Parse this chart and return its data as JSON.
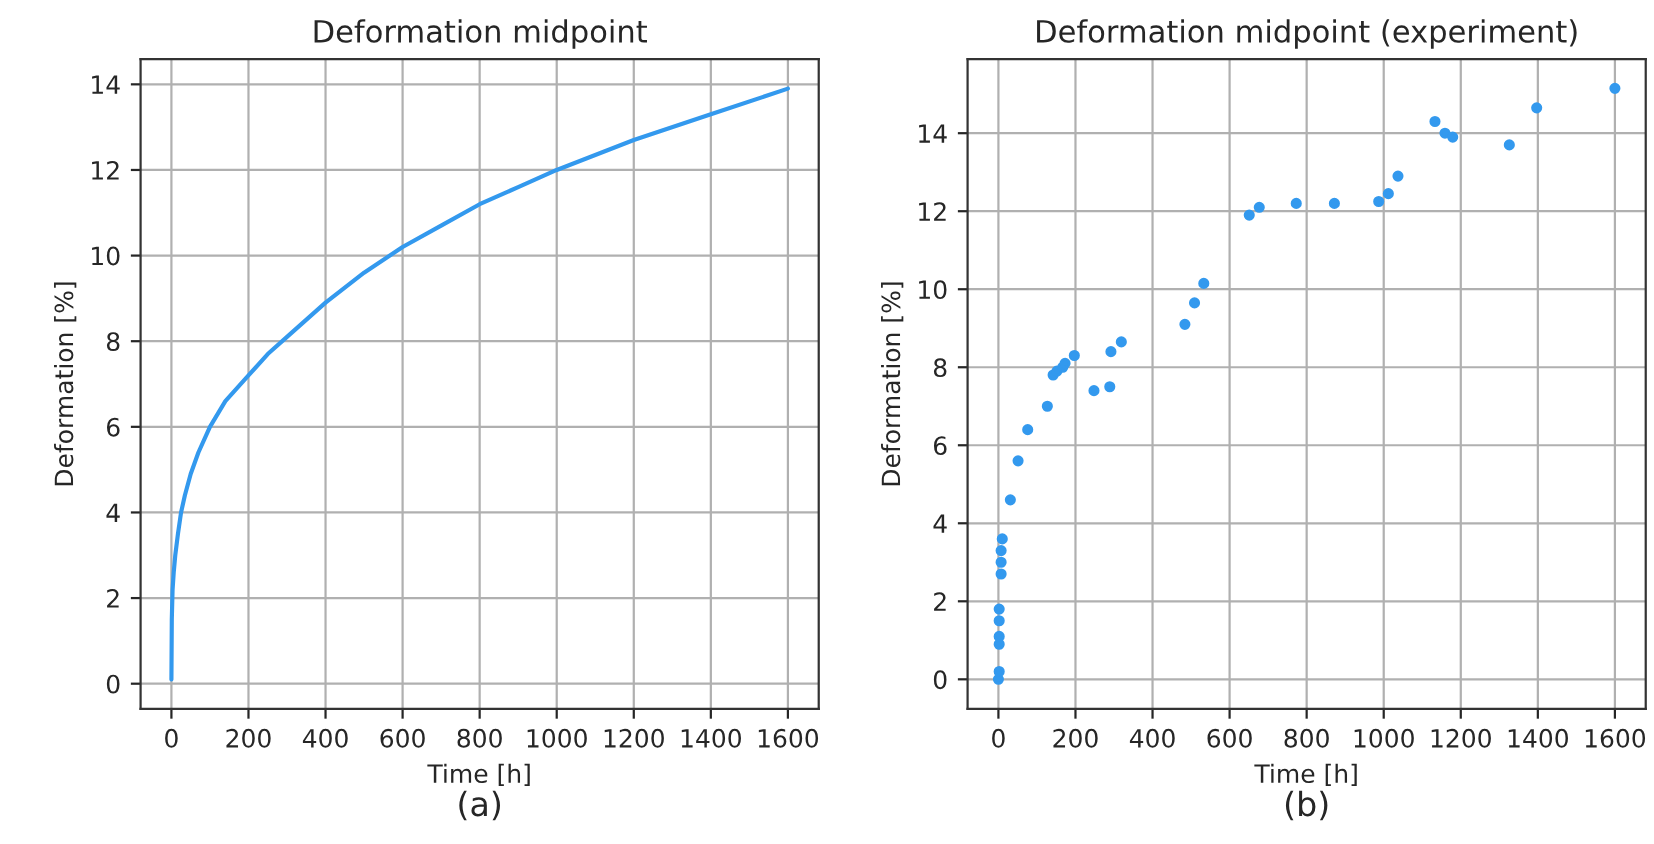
{
  "chart_data": [
    {
      "type": "line",
      "title": "Deformation midpoint",
      "xlabel": "Time [h]",
      "ylabel": "Deformation [%]",
      "annotations": [
        "(a)"
      ],
      "series": [
        {
          "color": "#3399ee",
          "x": [
            0,
            1,
            3,
            6,
            10,
            17,
            25,
            35,
            50,
            70,
            100,
            140,
            200,
            250,
            300,
            400,
            500,
            600,
            700,
            800,
            900,
            1000,
            1200,
            1400,
            1600
          ],
          "values": [
            0.1,
            1.5,
            2.2,
            2.6,
            3,
            3.5,
            4,
            4.4,
            4.9,
            5.4,
            6,
            6.6,
            7.2,
            7.7,
            8.1,
            8.9,
            9.6,
            10.2,
            10.7,
            11.2,
            11.6,
            12,
            12.7,
            13.3,
            13.9
          ]
        }
      ],
      "xlim": [
        -80,
        1680
      ],
      "ylim": [
        -0.59,
        14.59
      ],
      "xticks": [
        0,
        200,
        400,
        600,
        800,
        1000,
        1200,
        1400,
        1600
      ],
      "yticks": [
        0,
        2,
        4,
        6,
        8,
        10,
        12,
        14
      ],
      "grid": true,
      "line_style": "solid"
    },
    {
      "type": "scatter",
      "title": "Deformation midpoint (experiment)",
      "xlabel": "Time [h]",
      "ylabel": "Deformation [%]",
      "annotations": [
        "(b)"
      ],
      "series": [
        {
          "color": "#3399ee",
          "x": [
            0,
            2,
            2,
            2,
            2,
            2,
            7,
            7,
            7,
            10,
            31,
            51,
            76,
            127,
            142,
            152,
            167,
            173,
            197,
            248,
            289,
            292,
            319,
            484,
            509,
            533,
            651,
            677,
            773,
            872,
            987,
            1012,
            1037,
            1133,
            1159,
            1179,
            1326,
            1397,
            1600
          ],
          "values": [
            0,
            0.2,
            0.9,
            1.1,
            1.5,
            1.8,
            2.7,
            3.0,
            3.3,
            3.6,
            4.6,
            5.6,
            6.4,
            7.0,
            7.8,
            7.9,
            8.0,
            8.1,
            8.3,
            7.4,
            7.5,
            8.4,
            8.65,
            9.1,
            9.65,
            10.15,
            11.9,
            12.1,
            12.2,
            12.2,
            12.25,
            12.45,
            12.9,
            14.3,
            14.0,
            13.9,
            13.7,
            14.65,
            15.15
          ]
        }
      ],
      "xlim": [
        -80,
        1680
      ],
      "ylim": [
        -0.76,
        15.9
      ],
      "xticks": [
        0,
        200,
        400,
        600,
        800,
        1000,
        1200,
        1400,
        1600
      ],
      "yticks": [
        0,
        2,
        4,
        6,
        8,
        10,
        12,
        14
      ],
      "grid": true,
      "marker": "circle"
    }
  ]
}
